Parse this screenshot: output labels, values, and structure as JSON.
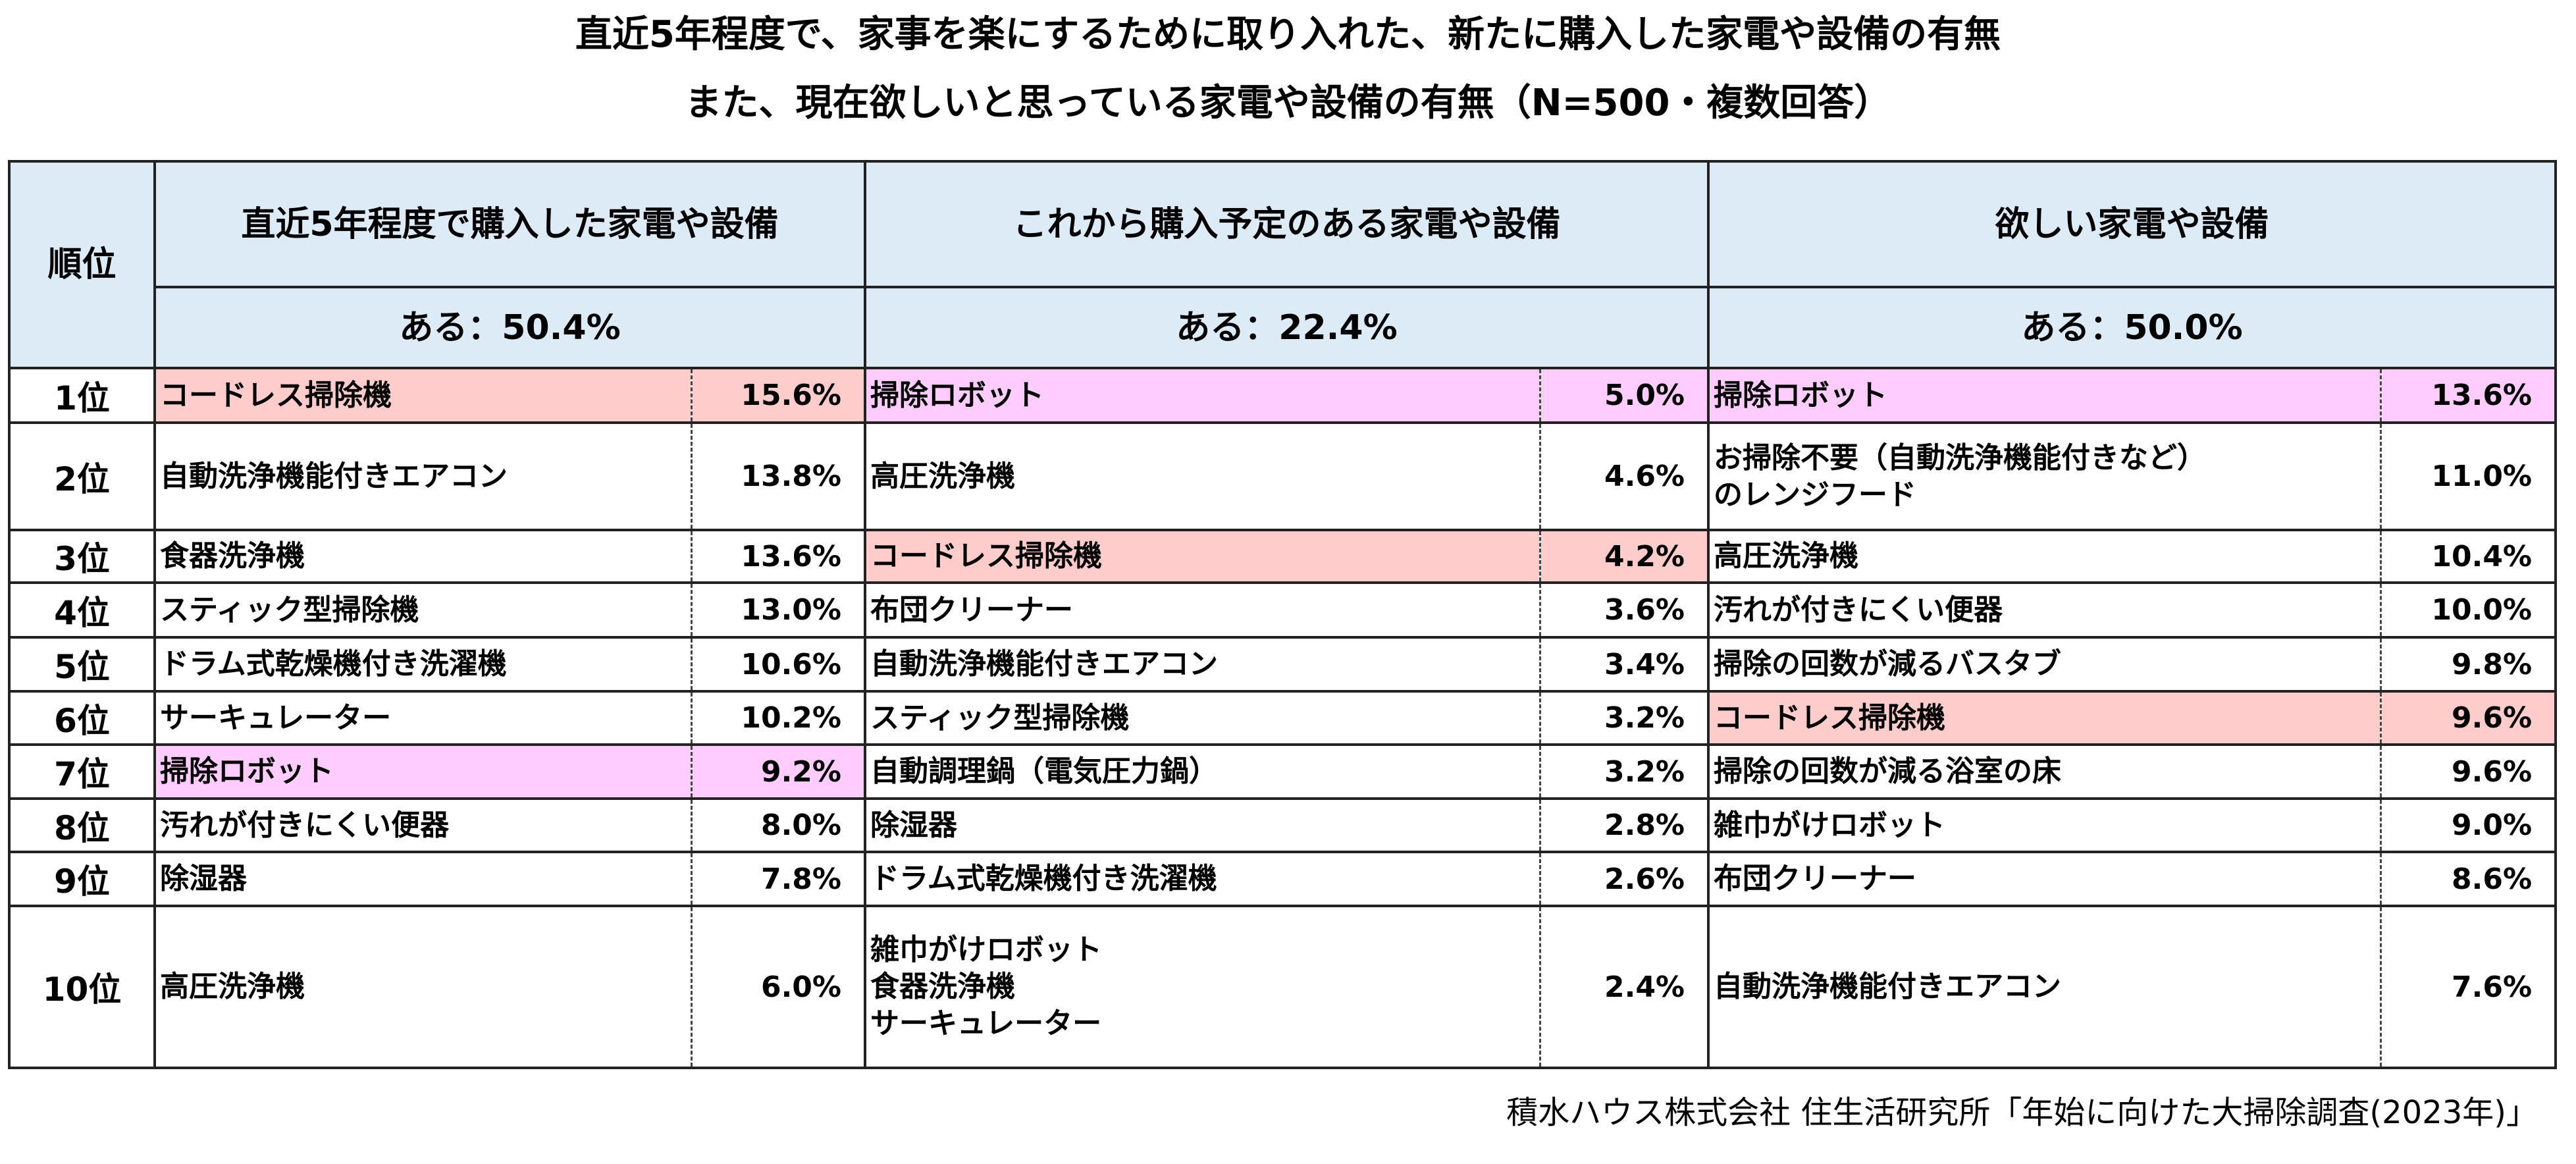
{
  "title": {
    "line1": "直近5年程度で、家事を楽にするために取り入れた、新たに購入した家電や設備の有無",
    "line2": "また、現在欲しいと思っている家電や設備の有無（N=500・複数回答）"
  },
  "table": {
    "rank_header": "順位",
    "columns": [
      {
        "header": "直近5年程度で購入した家電や設備",
        "summary": "ある：50.4%"
      },
      {
        "header": "これから購入予定のある家電や設備",
        "summary": "ある：22.4%"
      },
      {
        "header": "欲しい家電や設備",
        "summary": "ある：50.0%"
      }
    ],
    "colors": {
      "header_bg": "#ddebf7",
      "cordless_highlight": "#ffcccc",
      "robot_highlight": "#ffccff"
    },
    "rows": [
      {
        "rank": "1位",
        "cells": [
          [
            "コードレス掃除機",
            "15.6%",
            "cordless"
          ],
          [
            "掃除ロボット",
            "5.0%",
            "robot"
          ],
          [
            "掃除ロボット",
            "13.6%",
            "robot"
          ]
        ]
      },
      {
        "rank": "2位",
        "cells": [
          [
            "自動洗浄機能付きエアコン",
            "13.8%",
            ""
          ],
          [
            "高圧洗浄機",
            "4.6%",
            ""
          ],
          [
            "お掃除不要（自動洗浄機能付きなど）\nのレンジフード",
            "11.0%",
            ""
          ]
        ]
      },
      {
        "rank": "3位",
        "cells": [
          [
            "食器洗浄機",
            "13.6%",
            ""
          ],
          [
            "コードレス掃除機",
            "4.2%",
            "cordless"
          ],
          [
            "高圧洗浄機",
            "10.4%",
            ""
          ]
        ]
      },
      {
        "rank": "4位",
        "cells": [
          [
            "スティック型掃除機",
            "13.0%",
            ""
          ],
          [
            "布団クリーナー",
            "3.6%",
            ""
          ],
          [
            "汚れが付きにくい便器",
            "10.0%",
            ""
          ]
        ]
      },
      {
        "rank": "5位",
        "cells": [
          [
            "ドラム式乾燥機付き洗濯機",
            "10.6%",
            ""
          ],
          [
            "自動洗浄機能付きエアコン",
            "3.4%",
            ""
          ],
          [
            "掃除の回数が減るバスタブ",
            "9.8%",
            ""
          ]
        ]
      },
      {
        "rank": "6位",
        "cells": [
          [
            "サーキュレーター",
            "10.2%",
            ""
          ],
          [
            "スティック型掃除機",
            "3.2%",
            ""
          ],
          [
            "コードレス掃除機",
            "9.6%",
            "cordless"
          ]
        ]
      },
      {
        "rank": "7位",
        "cells": [
          [
            "掃除ロボット",
            "9.2%",
            "robot"
          ],
          [
            "自動調理鍋（電気圧力鍋）",
            "3.2%",
            ""
          ],
          [
            "掃除の回数が減る浴室の床",
            "9.6%",
            ""
          ]
        ]
      },
      {
        "rank": "8位",
        "cells": [
          [
            "汚れが付きにくい便器",
            "8.0%",
            ""
          ],
          [
            "除湿器",
            "2.8%",
            ""
          ],
          [
            "雑巾がけロボット",
            "9.0%",
            ""
          ]
        ]
      },
      {
        "rank": "9位",
        "cells": [
          [
            "除湿器",
            "7.8%",
            ""
          ],
          [
            "ドラム式乾燥機付き洗濯機",
            "2.6%",
            ""
          ],
          [
            "布団クリーナー",
            "8.6%",
            ""
          ]
        ]
      },
      {
        "rank": "10位",
        "cells": [
          [
            "高圧洗浄機",
            "6.0%",
            ""
          ],
          [
            "雑巾がけロボット\n食器洗浄機\nサーキュレーター",
            "2.4%",
            ""
          ],
          [
            "自動洗浄機能付きエアコン",
            "7.6%",
            ""
          ]
        ]
      }
    ]
  },
  "footer": "積水ハウス株式会社 住生活研究所「年始に向けた大掃除調査(2023年)」"
}
